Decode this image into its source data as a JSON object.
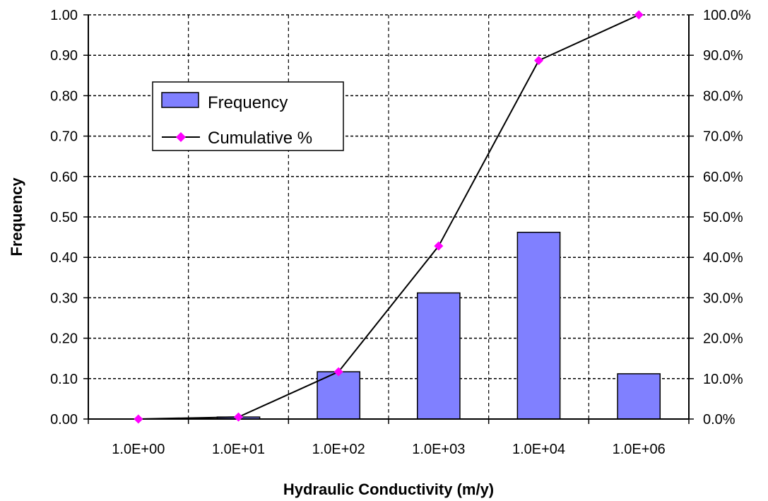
{
  "chart_data": {
    "type": "bar",
    "categories": [
      "1.0E+00",
      "1.0E+01",
      "1.0E+02",
      "1.0E+03",
      "1.0E+04",
      "1.0E+06"
    ],
    "series": [
      {
        "name": "Frequency",
        "type": "bar",
        "axis": "left",
        "values": [
          0.0,
          0.005,
          0.117,
          0.312,
          0.462,
          0.112
        ],
        "color": "#8080ff"
      },
      {
        "name": "Cumulative %",
        "type": "line",
        "axis": "right",
        "values": [
          0.0,
          0.005,
          0.117,
          0.428,
          0.887,
          1.0
        ],
        "color": "#ff00ff"
      }
    ],
    "xlabel": "Hydraulic Conductivity (m/y)",
    "ylabel": "Frequency",
    "ylim": [
      0,
      1.0
    ],
    "y2lim": [
      0,
      1.0
    ],
    "yticks": [
      "0.00",
      "0.10",
      "0.20",
      "0.30",
      "0.40",
      "0.50",
      "0.60",
      "0.70",
      "0.80",
      "0.90",
      "1.00"
    ],
    "y2ticks": [
      "0.0%",
      "10.0%",
      "20.0%",
      "30.0%",
      "40.0%",
      "50.0%",
      "60.0%",
      "70.0%",
      "80.0%",
      "90.0%",
      "100.0%"
    ],
    "grid": true,
    "legend_position": "upper-left"
  }
}
